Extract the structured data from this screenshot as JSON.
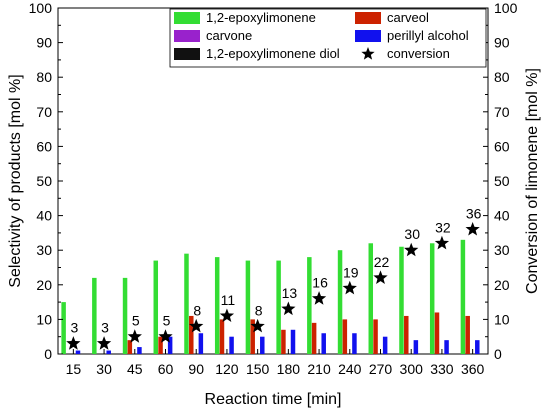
{
  "chart_data": {
    "type": "bar",
    "categories": [
      "15",
      "30",
      "45",
      "60",
      "90",
      "120",
      "150",
      "180",
      "210",
      "240",
      "270",
      "300",
      "330",
      "360"
    ],
    "xlabel": "Reaction time [min]",
    "ylabel": "Selectivity of products [mol %]",
    "y2label": "Conversion of limonene [mol %]",
    "ylim": [
      0,
      100
    ],
    "y2lim": [
      0,
      100
    ],
    "yticks": [
      0,
      10,
      20,
      30,
      40,
      50,
      60,
      70,
      80,
      90,
      100
    ],
    "legend_position": "top-center",
    "series": [
      {
        "name": "1,2-epoxylimonene",
        "color": "#33dd33",
        "values": [
          15,
          22,
          22,
          27,
          29,
          28,
          27,
          27,
          28,
          30,
          32,
          31,
          32,
          33
        ]
      },
      {
        "name": "carveol",
        "color": "#cc2200",
        "values": [
          0,
          0,
          4,
          5,
          11,
          10,
          10,
          7,
          9,
          10,
          10,
          11,
          12,
          11
        ]
      },
      {
        "name": "carvone",
        "color": "#9922cc",
        "values": [
          0,
          0,
          0,
          0,
          0,
          0,
          0,
          0,
          0,
          0,
          0,
          0,
          0,
          0
        ]
      },
      {
        "name": "perillyl alcohol",
        "color": "#1111ee",
        "values": [
          1,
          1,
          2,
          5,
          6,
          5,
          5,
          7,
          6,
          6,
          5,
          4,
          4,
          4
        ]
      },
      {
        "name": "1,2-epoxylimonene diol",
        "color": "#111111",
        "values": [
          0,
          0,
          0,
          0,
          0,
          0,
          0,
          0,
          0,
          0,
          0,
          0,
          0,
          0
        ]
      }
    ],
    "conversion": {
      "name": "conversion",
      "axis": "right",
      "marker": "star",
      "values": [
        3,
        3,
        5,
        5,
        8,
        11,
        8,
        13,
        16,
        19,
        22,
        30,
        32,
        36
      ],
      "labels": [
        "3",
        "3",
        "5",
        "5",
        "8",
        "11",
        "8",
        "13",
        "16",
        "19",
        "22",
        "30",
        "32",
        "36"
      ]
    }
  }
}
